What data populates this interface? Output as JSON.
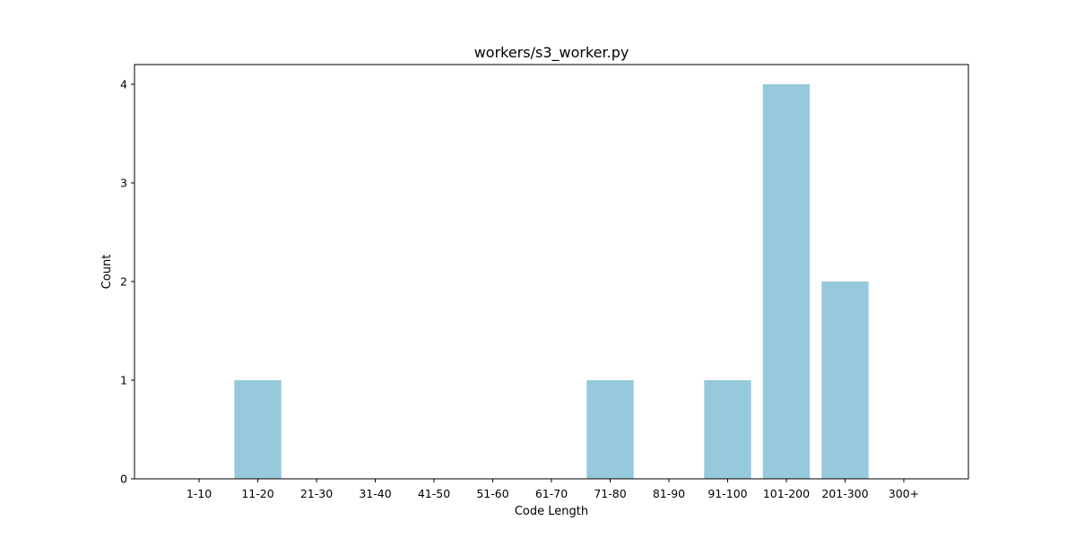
{
  "chart_data": {
    "type": "bar",
    "title": "workers/s3_worker.py",
    "xlabel": "Code Length",
    "ylabel": "Count",
    "categories": [
      "1-10",
      "11-20",
      "21-30",
      "31-40",
      "41-50",
      "51-60",
      "61-70",
      "71-80",
      "81-90",
      "91-100",
      "101-200",
      "201-300",
      "300+"
    ],
    "values": [
      0,
      1,
      0,
      0,
      0,
      0,
      0,
      1,
      0,
      1,
      4,
      2,
      0
    ],
    "yticks": [
      0,
      1,
      2,
      3,
      4
    ],
    "ylim": [
      0,
      4.2
    ],
    "bar_color": "#96c9dc",
    "grid": false,
    "legend": "none"
  }
}
